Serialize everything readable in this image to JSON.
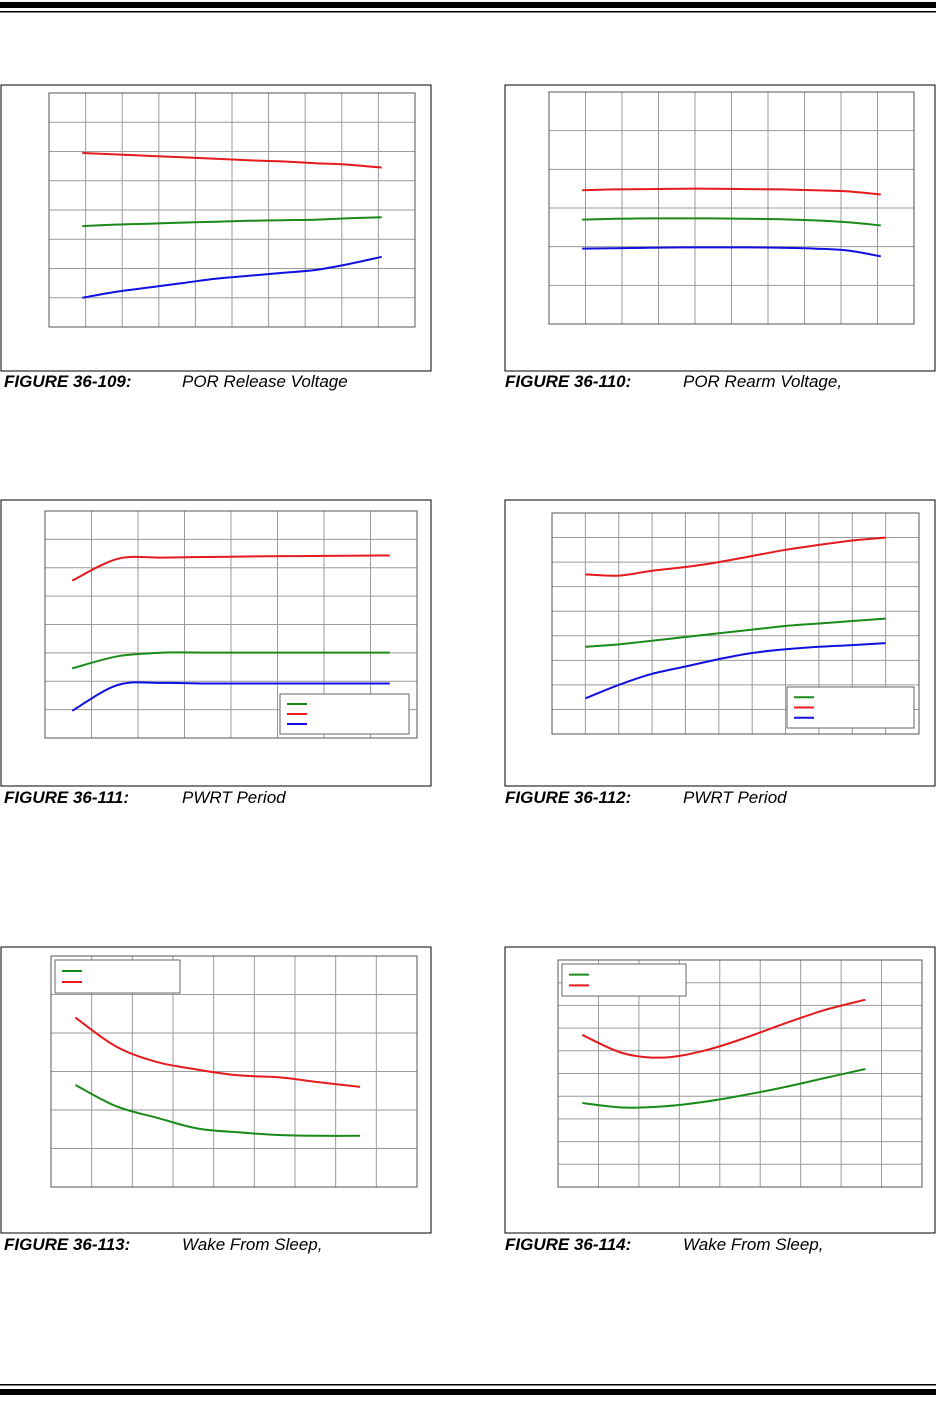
{
  "page": {
    "figures": [
      {
        "number": "FIGURE 36-109:",
        "caption": "POR Release Voltage"
      },
      {
        "number": "FIGURE 36-110:",
        "caption": "POR Rearm Voltage,"
      },
      {
        "number": "FIGURE 36-111:",
        "caption": "PWRT Period"
      },
      {
        "number": "FIGURE 36-112:",
        "caption": "PWRT Period"
      },
      {
        "number": "FIGURE 36-113:",
        "caption": "Wake From Sleep,"
      },
      {
        "number": "FIGURE 36-114:",
        "caption": "Wake From Sleep,"
      }
    ]
  },
  "chart_data": [
    {
      "figure": "FIGURE 36-109:",
      "type": "line",
      "grid": true,
      "x": [
        0,
        1,
        2,
        3,
        4,
        5,
        6,
        7,
        8,
        9
      ],
      "xlim": [
        -1,
        10
      ],
      "ylim": [
        0,
        8
      ],
      "series": [
        {
          "color": "#e41a1c",
          "values": [
            5.95,
            5.9,
            5.85,
            5.8,
            5.75,
            5.7,
            5.66,
            5.6,
            5.55,
            5.45
          ]
        },
        {
          "color": "#1a8a1a",
          "values": [
            3.45,
            3.5,
            3.53,
            3.57,
            3.6,
            3.63,
            3.65,
            3.67,
            3.72,
            3.75
          ]
        },
        {
          "color": "#1010e0",
          "values": [
            1.0,
            1.2,
            1.35,
            1.5,
            1.65,
            1.75,
            1.85,
            1.95,
            2.15,
            2.4
          ]
        }
      ],
      "legend": false,
      "annotations": [],
      "xlabel": "",
      "ylabel": ""
    },
    {
      "figure": "FIGURE 36-110:",
      "type": "line",
      "grid": true,
      "x": [
        0,
        1,
        2,
        3,
        4,
        5,
        6,
        7,
        8,
        9
      ],
      "xlim": [
        -1,
        10
      ],
      "ylim": [
        0,
        6
      ],
      "series": [
        {
          "color": "#e41a1c",
          "values": [
            3.46,
            3.48,
            3.49,
            3.5,
            3.5,
            3.49,
            3.48,
            3.46,
            3.43,
            3.35
          ]
        },
        {
          "color": "#1a8a1a",
          "values": [
            2.7,
            2.72,
            2.73,
            2.73,
            2.73,
            2.72,
            2.71,
            2.68,
            2.63,
            2.55
          ]
        },
        {
          "color": "#1010e0",
          "values": [
            1.95,
            1.96,
            1.97,
            1.98,
            1.98,
            1.98,
            1.97,
            1.95,
            1.9,
            1.75
          ]
        }
      ],
      "legend": false,
      "annotations": [],
      "xlabel": "",
      "ylabel": ""
    },
    {
      "figure": "FIGURE 36-111:",
      "type": "line",
      "grid": true,
      "x": [
        0,
        1,
        2,
        3,
        4,
        5,
        6,
        7
      ],
      "xlim": [
        -0.6,
        7.6
      ],
      "ylim": [
        0,
        7.5
      ],
      "series": [
        {
          "name": "",
          "color": "#1a8a1a",
          "values": [
            2.3,
            2.7,
            2.82,
            2.82,
            2.82,
            2.82,
            2.82,
            2.82
          ]
        },
        {
          "name": "",
          "color": "#e41a1c",
          "values": [
            5.2,
            5.92,
            5.96,
            5.98,
            6.0,
            6.01,
            6.02,
            6.03
          ]
        },
        {
          "name": "",
          "color": "#1010e0",
          "values": [
            0.9,
            1.75,
            1.82,
            1.8,
            1.8,
            1.8,
            1.8,
            1.8
          ]
        }
      ],
      "legend": "bottom-right",
      "xlabel": "",
      "ylabel": ""
    },
    {
      "figure": "FIGURE 36-112:",
      "type": "line",
      "grid": true,
      "x": [
        0,
        1,
        2,
        3,
        4,
        5,
        6,
        7,
        8,
        9
      ],
      "xlim": [
        -1,
        10
      ],
      "ylim": [
        0,
        9
      ],
      "series": [
        {
          "name": "",
          "color": "#1a8a1a",
          "values": [
            3.55,
            3.65,
            3.8,
            3.95,
            4.1,
            4.25,
            4.4,
            4.5,
            4.6,
            4.7
          ]
        },
        {
          "name": "",
          "color": "#e41a1c",
          "values": [
            6.5,
            6.45,
            6.65,
            6.8,
            7.0,
            7.25,
            7.5,
            7.7,
            7.88,
            8.0
          ]
        },
        {
          "name": "",
          "color": "#1010e0",
          "values": [
            1.45,
            2.0,
            2.45,
            2.75,
            3.05,
            3.3,
            3.45,
            3.55,
            3.62,
            3.7
          ]
        }
      ],
      "legend": "bottom-right",
      "xlabel": "",
      "ylabel": ""
    },
    {
      "figure": "FIGURE 36-113:",
      "type": "line",
      "grid": true,
      "x": [
        0,
        1,
        2,
        3,
        4,
        5,
        6,
        7
      ],
      "xlim": [
        -0.6,
        8.4
      ],
      "ylim": [
        0,
        6
      ],
      "series": [
        {
          "name": "",
          "color": "#1a8a1a",
          "values": [
            2.65,
            2.1,
            1.8,
            1.52,
            1.42,
            1.35,
            1.33,
            1.33
          ]
        },
        {
          "name": "",
          "color": "#e41a1c",
          "values": [
            4.4,
            3.65,
            3.25,
            3.05,
            2.9,
            2.85,
            2.72,
            2.6
          ]
        }
      ],
      "legend": "top-left",
      "xlabel": "",
      "ylabel": ""
    },
    {
      "figure": "FIGURE 36-114:",
      "type": "line",
      "grid": true,
      "x": [
        0,
        1,
        2,
        3,
        4,
        5,
        6,
        7
      ],
      "xlim": [
        -0.6,
        8.4
      ],
      "ylim": [
        0,
        10
      ],
      "series": [
        {
          "name": "",
          "color": "#1a8a1a",
          "values": [
            3.7,
            3.5,
            3.55,
            3.75,
            4.05,
            4.4,
            4.8,
            5.2
          ]
        },
        {
          "name": "",
          "color": "#e41a1c",
          "values": [
            6.7,
            5.9,
            5.7,
            6.0,
            6.55,
            7.2,
            7.8,
            8.25
          ]
        }
      ],
      "legend": "top-left",
      "xlabel": "",
      "ylabel": ""
    }
  ]
}
